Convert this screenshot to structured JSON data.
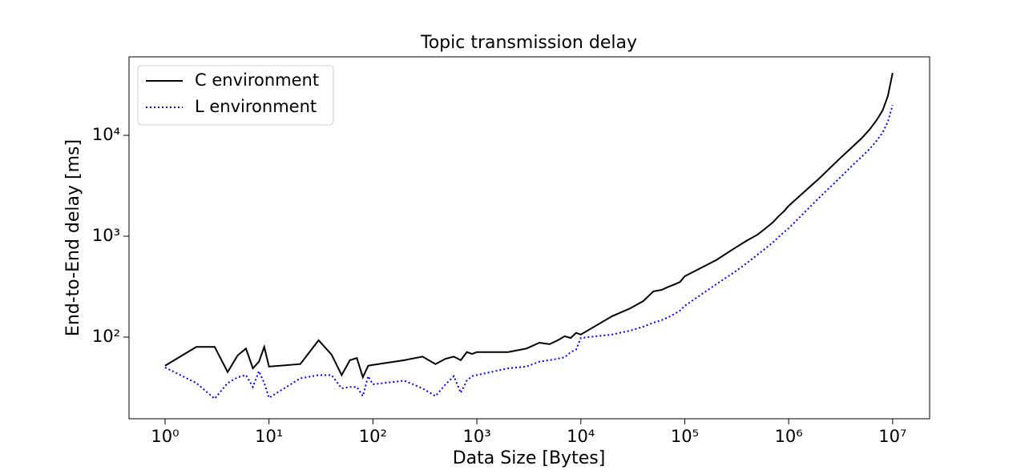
{
  "chart_data": {
    "type": "line",
    "title": "Topic transmission delay",
    "x_label": "Data Size [Bytes]",
    "y_label": "End-to-End delay [ms]",
    "x_log": true,
    "y_log": true,
    "legend_position": "upper left",
    "x": [
      1,
      2,
      3,
      4,
      5,
      6,
      7,
      8,
      9,
      10,
      20,
      30,
      40,
      50,
      60,
      70,
      80,
      90,
      100,
      200,
      300,
      400,
      500,
      600,
      700,
      800,
      900,
      1000,
      2000,
      3000,
      4000,
      5000,
      6000,
      7000,
      8000,
      9000,
      10000,
      20000,
      30000,
      40000,
      50000,
      60000,
      70000,
      80000,
      90000,
      100000,
      200000,
      300000,
      400000,
      500000,
      600000,
      700000,
      800000,
      900000,
      1000000,
      2000000,
      3000000,
      4000000,
      5000000,
      6000000,
      7000000,
      8000000,
      9000000,
      10000000
    ],
    "series": [
      {
        "name": "C environment",
        "color": "#000000",
        "line_style": "solid",
        "values": [
          52,
          80,
          80,
          45,
          66,
          77,
          49,
          57,
          80,
          51,
          54,
          93,
          67,
          42,
          59,
          62,
          40,
          52,
          53,
          59,
          64,
          54,
          61,
          64,
          59,
          71,
          68,
          71,
          71,
          77,
          88,
          85,
          93,
          102,
          98,
          110,
          106,
          161,
          193,
          228,
          284,
          294,
          316,
          333,
          352,
          401,
          578,
          758,
          910,
          1034,
          1198,
          1364,
          1578,
          1764,
          2000,
          3800,
          5700,
          7500,
          9300,
          11400,
          14100,
          17600,
          24500,
          41600
        ]
      },
      {
        "name": "L environment",
        "color": "#0000ff",
        "line_style": "dotted",
        "values": [
          50,
          35,
          24.5,
          35,
          40,
          42,
          32,
          46,
          35,
          25,
          39,
          42,
          42,
          31,
          32,
          32,
          26,
          41,
          34,
          37,
          31,
          26,
          34,
          41,
          28,
          37,
          41,
          42,
          49,
          51,
          57,
          59,
          61,
          63,
          71,
          75,
          98,
          106,
          116,
          127,
          139,
          147,
          158,
          170,
          183,
          204,
          333,
          440,
          546,
          655,
          758,
          862,
          982,
          1094,
          1200,
          2450,
          3660,
          4900,
          6100,
          7300,
          8800,
          10600,
          13600,
          20000
        ]
      }
    ],
    "xlim": [
      0.45,
      22700000
    ],
    "ylim": [
      15.5,
      60000
    ],
    "xticks": [
      {
        "value": 1,
        "label": "10⁰"
      },
      {
        "value": 10,
        "label": "10¹"
      },
      {
        "value": 100,
        "label": "10²"
      },
      {
        "value": 1000,
        "label": "10³"
      },
      {
        "value": 10000,
        "label": "10⁴"
      },
      {
        "value": 100000,
        "label": "10⁵"
      },
      {
        "value": 1000000,
        "label": "10⁶"
      },
      {
        "value": 10000000,
        "label": "10⁷"
      }
    ],
    "yticks": [
      {
        "value": 100,
        "label": "10²"
      },
      {
        "value": 1000,
        "label": "10³"
      },
      {
        "value": 10000,
        "label": "10⁴"
      }
    ]
  }
}
